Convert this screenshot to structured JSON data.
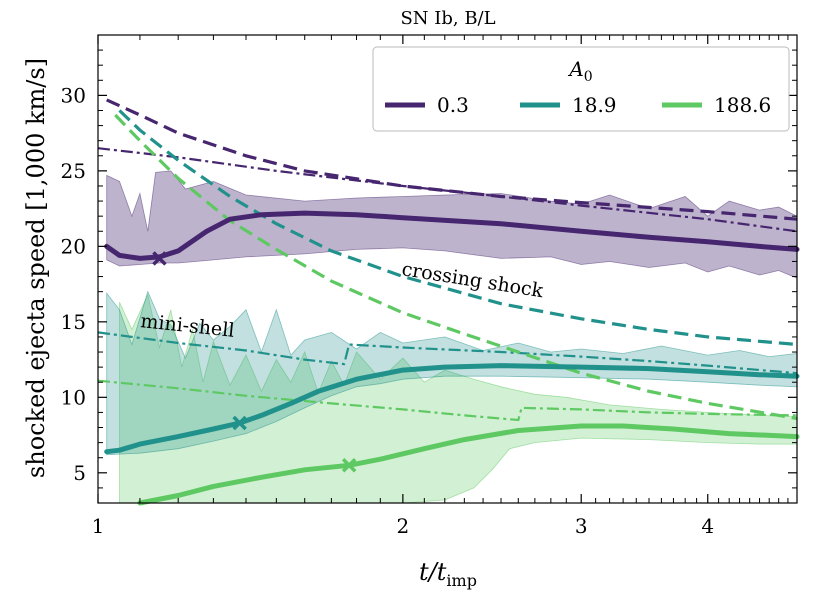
{
  "chart_data": {
    "type": "line",
    "title": "SN Ib, B/L",
    "xlabel": "t/t_imp",
    "xlabel_main": "t/t",
    "xlabel_sub": "imp",
    "ylabel": "shocked ejecta speed [1,000 km/s]",
    "xscale": "log",
    "xlim": [
      1.0,
      4.9
    ],
    "ylim": [
      3.0,
      34.0
    ],
    "xticks": [
      1,
      2,
      3,
      4
    ],
    "xtick_labels": [
      "1",
      "2",
      "3",
      "4"
    ],
    "yticks": [
      5,
      10,
      15,
      20,
      25,
      30
    ],
    "ytick_labels": [
      "5",
      "10",
      "15",
      "20",
      "25",
      "30"
    ],
    "legend": {
      "title": "A_0",
      "title_main": "A",
      "title_sub": "0",
      "placement": "top-right",
      "entries": [
        "0.3",
        "18.9",
        "188.6"
      ]
    },
    "annotations": [
      "crossing shock",
      "mini-shell"
    ],
    "series": [
      {
        "name": "0.3",
        "color": "#46266f",
        "fill_alpha": 0.35,
        "solid": [
          [
            1.02,
            20.0
          ],
          [
            1.05,
            19.4
          ],
          [
            1.1,
            19.2
          ],
          [
            1.15,
            19.3
          ],
          [
            1.2,
            19.7
          ],
          [
            1.28,
            21.0
          ],
          [
            1.35,
            21.8
          ],
          [
            1.45,
            22.1
          ],
          [
            1.6,
            22.2
          ],
          [
            1.8,
            22.1
          ],
          [
            2.0,
            21.9
          ],
          [
            2.5,
            21.5
          ],
          [
            3.0,
            21.0
          ],
          [
            3.5,
            20.6
          ],
          [
            4.0,
            20.3
          ],
          [
            4.5,
            20.0
          ],
          [
            4.9,
            19.8
          ]
        ],
        "marker": [
          1.15,
          19.2
        ],
        "dashed": [
          [
            1.02,
            29.7
          ],
          [
            1.1,
            28.7
          ],
          [
            1.2,
            27.5
          ],
          [
            1.4,
            26.0
          ],
          [
            1.6,
            25.0
          ],
          [
            2.0,
            24.0
          ],
          [
            2.5,
            23.3
          ],
          [
            3.0,
            22.9
          ],
          [
            4.0,
            22.3
          ],
          [
            4.9,
            21.8
          ]
        ],
        "dashdot": [
          [
            1.0,
            26.5
          ],
          [
            1.2,
            25.9
          ],
          [
            1.5,
            25.0
          ],
          [
            2.0,
            24.0
          ],
          [
            2.5,
            23.3
          ],
          [
            3.0,
            22.7
          ],
          [
            4.0,
            21.8
          ],
          [
            4.9,
            21.0
          ]
        ],
        "band_upper": [
          [
            1.02,
            24.7
          ],
          [
            1.05,
            24.3
          ],
          [
            1.08,
            22.0
          ],
          [
            1.1,
            23.5
          ],
          [
            1.12,
            21.0
          ],
          [
            1.14,
            24.9
          ],
          [
            1.18,
            25.0
          ],
          [
            1.22,
            23.8
          ],
          [
            1.3,
            24.3
          ],
          [
            1.4,
            23.4
          ],
          [
            1.6,
            23.0
          ],
          [
            1.8,
            23.2
          ],
          [
            2.0,
            23.3
          ],
          [
            2.2,
            23.4
          ],
          [
            2.5,
            23.5
          ],
          [
            2.8,
            23.0
          ],
          [
            3.0,
            22.8
          ],
          [
            3.2,
            23.4
          ],
          [
            3.5,
            22.5
          ],
          [
            3.8,
            23.3
          ],
          [
            4.0,
            22.0
          ],
          [
            4.2,
            23.0
          ],
          [
            4.5,
            22.4
          ],
          [
            4.7,
            22.6
          ],
          [
            4.9,
            22.0
          ]
        ],
        "band_lower": [
          [
            1.02,
            19.1
          ],
          [
            1.05,
            18.7
          ],
          [
            1.1,
            18.8
          ],
          [
            1.15,
            18.9
          ],
          [
            1.2,
            18.9
          ],
          [
            1.3,
            19.1
          ],
          [
            1.4,
            19.3
          ],
          [
            1.6,
            19.5
          ],
          [
            1.8,
            19.8
          ],
          [
            2.0,
            19.9
          ],
          [
            2.2,
            19.7
          ],
          [
            2.5,
            19.2
          ],
          [
            2.8,
            19.3
          ],
          [
            3.0,
            18.8
          ],
          [
            3.2,
            19.0
          ],
          [
            3.5,
            18.6
          ],
          [
            3.8,
            18.9
          ],
          [
            4.0,
            18.3
          ],
          [
            4.2,
            18.7
          ],
          [
            4.5,
            18.1
          ],
          [
            4.7,
            18.4
          ],
          [
            4.9,
            17.9
          ]
        ]
      },
      {
        "name": "18.9",
        "color": "#21918c",
        "fill_alpha": 0.28,
        "solid": [
          [
            1.02,
            6.4
          ],
          [
            1.05,
            6.5
          ],
          [
            1.1,
            6.9
          ],
          [
            1.2,
            7.4
          ],
          [
            1.3,
            7.9
          ],
          [
            1.38,
            8.3
          ],
          [
            1.45,
            8.8
          ],
          [
            1.55,
            9.6
          ],
          [
            1.65,
            10.4
          ],
          [
            1.8,
            11.2
          ],
          [
            2.0,
            11.8
          ],
          [
            2.2,
            12.0
          ],
          [
            2.5,
            12.1
          ],
          [
            3.0,
            12.0
          ],
          [
            3.5,
            11.9
          ],
          [
            4.0,
            11.7
          ],
          [
            4.5,
            11.5
          ],
          [
            4.9,
            11.4
          ]
        ],
        "marker": [
          1.38,
          8.3
        ],
        "dashed": [
          [
            1.05,
            29.0
          ],
          [
            1.1,
            27.7
          ],
          [
            1.2,
            25.7
          ],
          [
            1.35,
            23.3
          ],
          [
            1.5,
            21.5
          ],
          [
            1.7,
            19.7
          ],
          [
            2.0,
            18.0
          ],
          [
            2.5,
            16.2
          ],
          [
            3.0,
            15.2
          ],
          [
            3.5,
            14.5
          ],
          [
            4.0,
            14.0
          ],
          [
            4.9,
            13.5
          ]
        ],
        "dashdot": [
          [
            1.0,
            14.3
          ],
          [
            1.2,
            13.6
          ],
          [
            1.4,
            13.1
          ],
          [
            1.6,
            12.5
          ],
          [
            1.75,
            12.2
          ],
          [
            1.77,
            13.5
          ],
          [
            2.0,
            13.3
          ],
          [
            2.5,
            13.0
          ],
          [
            3.0,
            12.7
          ],
          [
            3.5,
            12.4
          ],
          [
            4.0,
            12.1
          ],
          [
            4.9,
            11.6
          ]
        ],
        "band_upper": [
          [
            1.02,
            16.9
          ],
          [
            1.05,
            15.8
          ],
          [
            1.08,
            13.5
          ],
          [
            1.12,
            17.0
          ],
          [
            1.15,
            15.2
          ],
          [
            1.18,
            14.8
          ],
          [
            1.22,
            12.6
          ],
          [
            1.26,
            14.9
          ],
          [
            1.3,
            13.8
          ],
          [
            1.35,
            14.7
          ],
          [
            1.4,
            15.8
          ],
          [
            1.45,
            13.0
          ],
          [
            1.5,
            15.8
          ],
          [
            1.55,
            12.8
          ],
          [
            1.6,
            13.8
          ],
          [
            1.7,
            14.3
          ],
          [
            1.8,
            13.2
          ],
          [
            1.9,
            14.3
          ],
          [
            2.0,
            13.6
          ],
          [
            2.2,
            14.0
          ],
          [
            2.4,
            13.1
          ],
          [
            2.6,
            13.6
          ],
          [
            2.8,
            13.0
          ],
          [
            3.0,
            13.2
          ],
          [
            3.3,
            12.9
          ],
          [
            3.6,
            13.4
          ],
          [
            4.0,
            12.8
          ],
          [
            4.3,
            13.1
          ],
          [
            4.6,
            12.7
          ],
          [
            4.9,
            12.9
          ]
        ],
        "band_lower": [
          [
            1.02,
            6.2
          ],
          [
            1.1,
            6.3
          ],
          [
            1.2,
            6.6
          ],
          [
            1.3,
            7.1
          ],
          [
            1.4,
            7.6
          ],
          [
            1.5,
            8.4
          ],
          [
            1.6,
            9.3
          ],
          [
            1.7,
            10.1
          ],
          [
            1.8,
            10.7
          ],
          [
            1.9,
            10.9
          ],
          [
            2.0,
            11.2
          ],
          [
            2.2,
            11.4
          ],
          [
            2.5,
            11.4
          ],
          [
            3.0,
            11.3
          ],
          [
            3.5,
            11.2
          ],
          [
            4.0,
            11.0
          ],
          [
            4.5,
            10.8
          ],
          [
            4.9,
            10.7
          ]
        ]
      },
      {
        "name": "188.6",
        "color": "#5ec962",
        "fill_alpha": 0.28,
        "solid": [
          [
            1.1,
            3.0
          ],
          [
            1.2,
            3.5
          ],
          [
            1.3,
            4.1
          ],
          [
            1.45,
            4.7
          ],
          [
            1.6,
            5.2
          ],
          [
            1.77,
            5.5
          ],
          [
            1.9,
            5.9
          ],
          [
            2.1,
            6.6
          ],
          [
            2.3,
            7.2
          ],
          [
            2.6,
            7.8
          ],
          [
            3.0,
            8.1
          ],
          [
            3.3,
            8.1
          ],
          [
            3.7,
            7.9
          ],
          [
            4.2,
            7.6
          ],
          [
            4.9,
            7.4
          ]
        ],
        "marker": [
          1.77,
          5.5
        ],
        "dashed": [
          [
            1.04,
            28.7
          ],
          [
            1.1,
            27.0
          ],
          [
            1.2,
            24.5
          ],
          [
            1.35,
            21.7
          ],
          [
            1.5,
            19.8
          ],
          [
            1.7,
            17.7
          ],
          [
            2.0,
            15.6
          ],
          [
            2.3,
            14.2
          ],
          [
            2.6,
            13.0
          ],
          [
            3.0,
            11.6
          ],
          [
            3.5,
            10.4
          ],
          [
            4.0,
            9.6
          ],
          [
            4.9,
            8.6
          ]
        ],
        "dashdot": [
          [
            1.0,
            11.1
          ],
          [
            1.2,
            10.6
          ],
          [
            1.4,
            10.1
          ],
          [
            1.7,
            9.6
          ],
          [
            2.0,
            9.2
          ],
          [
            2.3,
            8.8
          ],
          [
            2.6,
            8.5
          ],
          [
            2.62,
            9.3
          ],
          [
            3.0,
            9.2
          ],
          [
            3.5,
            9.0
          ],
          [
            4.0,
            8.9
          ],
          [
            4.9,
            8.8
          ]
        ],
        "band_upper": [
          [
            1.05,
            16.3
          ],
          [
            1.08,
            14.5
          ],
          [
            1.12,
            16.8
          ],
          [
            1.15,
            13.3
          ],
          [
            1.18,
            15.8
          ],
          [
            1.21,
            12.0
          ],
          [
            1.24,
            14.5
          ],
          [
            1.27,
            11.0
          ],
          [
            1.3,
            13.7
          ],
          [
            1.35,
            10.8
          ],
          [
            1.4,
            12.8
          ],
          [
            1.45,
            10.4
          ],
          [
            1.5,
            12.5
          ],
          [
            1.55,
            11.0
          ],
          [
            1.6,
            13.0
          ],
          [
            1.65,
            10.3
          ],
          [
            1.7,
            12.4
          ],
          [
            1.75,
            10.8
          ],
          [
            1.8,
            13.0
          ],
          [
            1.9,
            11.2
          ],
          [
            2.0,
            12.6
          ],
          [
            2.1,
            11.0
          ],
          [
            2.2,
            11.8
          ],
          [
            2.35,
            11.2
          ],
          [
            2.5,
            10.7
          ],
          [
            2.7,
            10.2
          ],
          [
            2.9,
            10.0
          ],
          [
            3.2,
            9.5
          ],
          [
            3.6,
            9.2
          ],
          [
            4.0,
            9.0
          ],
          [
            4.5,
            8.8
          ],
          [
            4.9,
            8.7
          ]
        ],
        "band_lower": [
          [
            1.05,
            3.0
          ],
          [
            1.2,
            3.0
          ],
          [
            1.4,
            3.0
          ],
          [
            1.6,
            3.0
          ],
          [
            1.8,
            3.0
          ],
          [
            2.0,
            3.0
          ],
          [
            2.2,
            3.2
          ],
          [
            2.35,
            4.0
          ],
          [
            2.45,
            5.2
          ],
          [
            2.55,
            6.6
          ],
          [
            2.7,
            7.0
          ],
          [
            3.0,
            7.3
          ],
          [
            3.5,
            7.2
          ],
          [
            4.0,
            7.0
          ],
          [
            4.5,
            6.9
          ],
          [
            4.9,
            6.9
          ]
        ]
      }
    ]
  }
}
